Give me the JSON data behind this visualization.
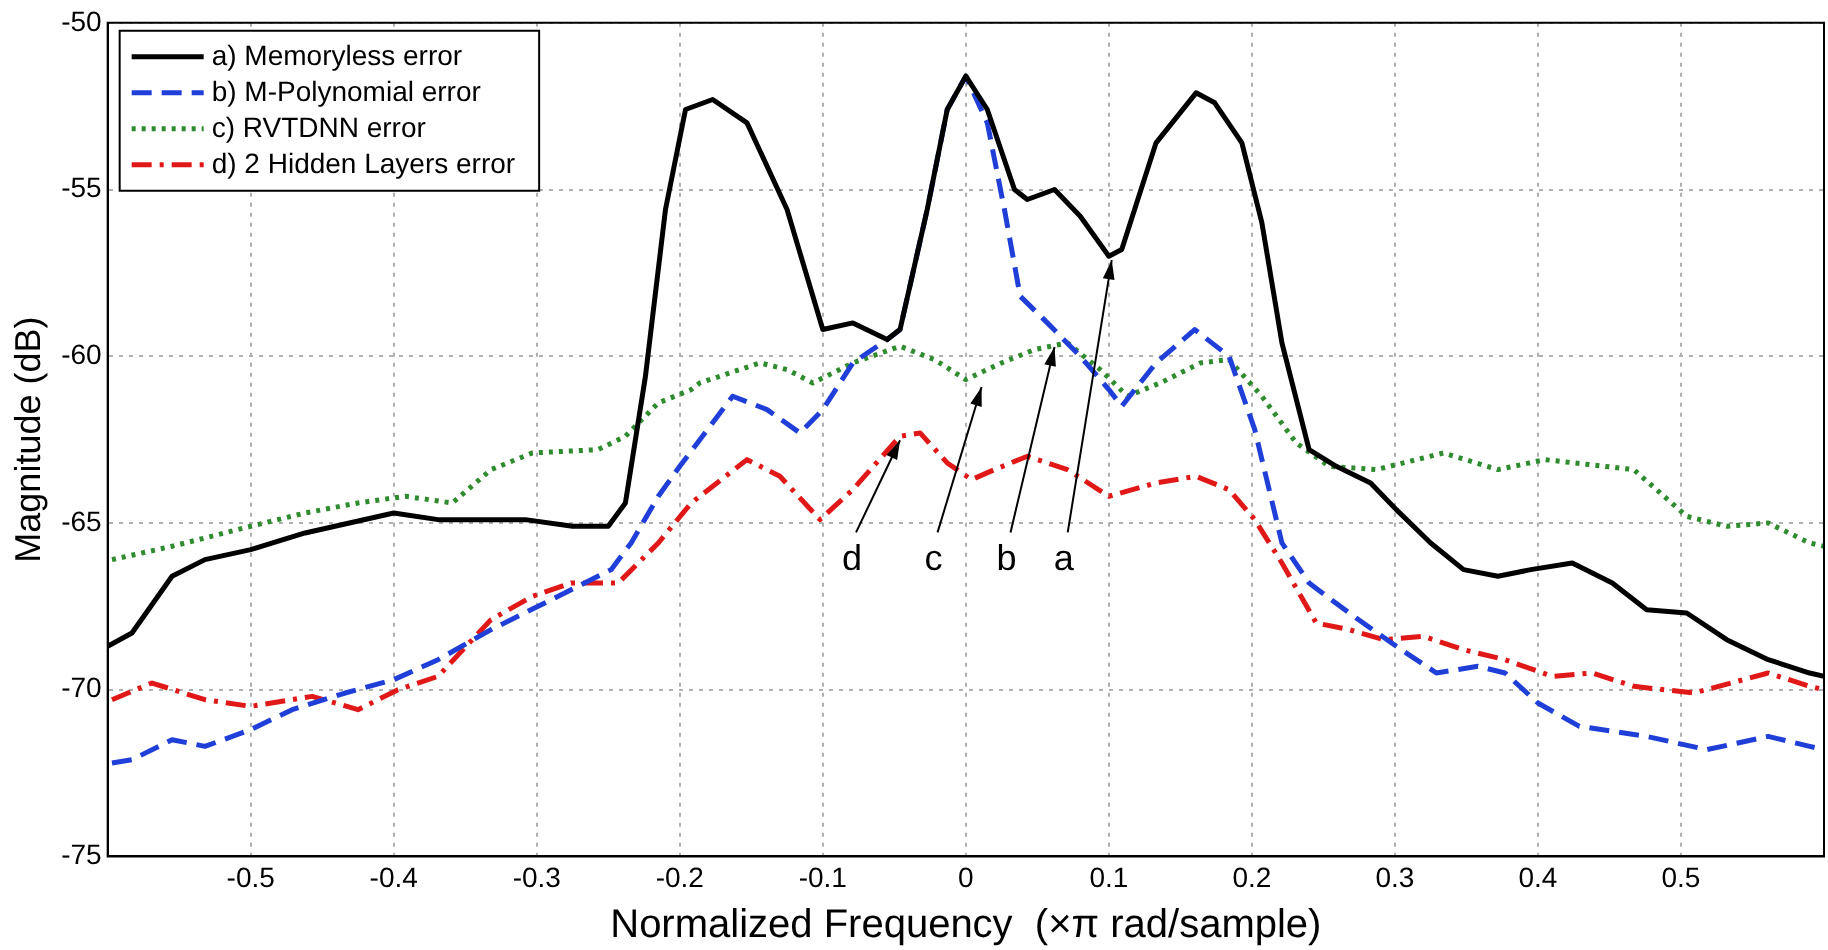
{
  "chart_data": {
    "type": "line",
    "xlabel": "Normalized Frequency  (×π rad/sample)",
    "ylabel": "Magnitude (dB)",
    "xlim": [
      -0.6,
      0.6
    ],
    "xticks": [
      -0.5,
      -0.4,
      -0.3,
      -0.2,
      -0.1,
      0,
      0.1,
      0.2,
      0.3,
      0.4,
      0.5
    ],
    "ylim": [
      -75,
      -50
    ],
    "yticks": [
      -75,
      -70,
      -65,
      -60,
      -55,
      -50
    ],
    "grid": true,
    "legend": "top left",
    "marker": "none",
    "annotations": [
      {
        "text": "d",
        "x": -0.046,
        "y": -62.4
      },
      {
        "text": "c",
        "x": 0.011,
        "y": -60.8
      },
      {
        "text": "b",
        "x": 0.062,
        "y": -59.6
      },
      {
        "text": "a",
        "x": 0.102,
        "y": -57.0
      }
    ],
    "series": [
      {
        "name": "a) Memoryless error",
        "color": "#000000",
        "line_style": "solid",
        "x": [
          -0.6,
          -0.583,
          -0.555,
          -0.532,
          -0.5,
          -0.462,
          -0.4,
          -0.369,
          -0.308,
          -0.275,
          -0.25,
          -0.238,
          -0.224,
          -0.21,
          -0.196,
          -0.177,
          -0.153,
          -0.125,
          -0.1,
          -0.079,
          -0.055,
          -0.046,
          -0.027,
          -0.013,
          0,
          0.015,
          0.034,
          0.043,
          0.062,
          0.08,
          0.1,
          0.109,
          0.133,
          0.161,
          0.174,
          0.193,
          0.207,
          0.221,
          0.24,
          0.259,
          0.283,
          0.301,
          0.325,
          0.348,
          0.372,
          0.395,
          0.424,
          0.452,
          0.476,
          0.504,
          0.532,
          0.561,
          0.59,
          0.6
        ],
        "values": [
          -68.7,
          -68.3,
          -66.6,
          -66.1,
          -65.8,
          -65.3,
          -64.7,
          -64.9,
          -64.9,
          -65.1,
          -65.1,
          -64.4,
          -60.6,
          -55.6,
          -52.6,
          -52.3,
          -53.0,
          -55.6,
          -59.2,
          -59.0,
          -59.5,
          -59.2,
          -55.6,
          -52.6,
          -51.6,
          -52.6,
          -55.0,
          -55.3,
          -55.0,
          -55.8,
          -57.0,
          -56.8,
          -53.6,
          -52.1,
          -52.4,
          -53.6,
          -56.0,
          -59.6,
          -62.8,
          -63.3,
          -63.8,
          -64.6,
          -65.6,
          -66.4,
          -66.6,
          -66.4,
          -66.2,
          -66.8,
          -67.6,
          -67.7,
          -68.5,
          -69.1,
          -69.5,
          -69.6
        ]
      },
      {
        "name": "b) M-Polynomial error",
        "color": "#1f3fd8",
        "line_style": "dashed",
        "x": [
          -0.597,
          -0.583,
          -0.555,
          -0.532,
          -0.5,
          -0.471,
          -0.434,
          -0.4,
          -0.369,
          -0.332,
          -0.285,
          -0.248,
          -0.234,
          -0.215,
          -0.2,
          -0.163,
          -0.139,
          -0.116,
          -0.1,
          -0.079,
          -0.055,
          -0.046,
          -0.027,
          -0.013,
          0,
          0.015,
          0.027,
          0.038,
          0.057,
          0.08,
          0.1,
          0.109,
          0.133,
          0.16,
          0.184,
          0.202,
          0.221,
          0.24,
          0.268,
          0.301,
          0.329,
          0.358,
          0.377,
          0.4,
          0.429,
          0.476,
          0.518,
          0.561,
          0.59,
          0.6
        ],
        "values": [
          -72.2,
          -72.1,
          -71.5,
          -71.7,
          -71.2,
          -70.6,
          -70.1,
          -69.7,
          -69.1,
          -68.2,
          -67.2,
          -66.4,
          -65.6,
          -64.2,
          -63.3,
          -61.2,
          -61.6,
          -62.3,
          -61.6,
          -60.2,
          -59.5,
          -59.2,
          -55.6,
          -52.6,
          -51.6,
          -53.0,
          -55.6,
          -58.2,
          -59.0,
          -60.0,
          -61.0,
          -61.5,
          -60.2,
          -59.2,
          -60.0,
          -62.2,
          -65.6,
          -66.8,
          -67.7,
          -68.7,
          -69.5,
          -69.3,
          -69.5,
          -70.4,
          -71.1,
          -71.4,
          -71.8,
          -71.4,
          -71.7,
          -71.8
        ]
      },
      {
        "name": "c) RVTDNN error",
        "color": "#2e8b2e",
        "line_style": "dotted",
        "x": [
          -0.597,
          -0.555,
          -0.5,
          -0.462,
          -0.425,
          -0.392,
          -0.359,
          -0.332,
          -0.303,
          -0.257,
          -0.238,
          -0.215,
          -0.192,
          -0.186,
          -0.144,
          -0.125,
          -0.107,
          -0.079,
          -0.046,
          -0.022,
          0,
          0.025,
          0.048,
          0.071,
          0.094,
          0.113,
          0.136,
          0.164,
          0.184,
          0.207,
          0.231,
          0.254,
          0.287,
          0.334,
          0.372,
          0.405,
          0.467,
          0.504,
          0.532,
          0.561,
          0.59,
          0.6
        ],
        "values": [
          -66.1,
          -65.7,
          -65.1,
          -64.7,
          -64.4,
          -64.2,
          -64.4,
          -63.4,
          -62.9,
          -62.8,
          -62.4,
          -61.4,
          -61.0,
          -60.8,
          -60.2,
          -60.4,
          -60.8,
          -60.2,
          -59.7,
          -60.1,
          -60.7,
          -60.2,
          -59.8,
          -59.6,
          -60.4,
          -61.2,
          -60.8,
          -60.2,
          -60.1,
          -61.2,
          -62.6,
          -63.3,
          -63.4,
          -62.9,
          -63.4,
          -63.1,
          -63.4,
          -64.8,
          -65.1,
          -65.0,
          -65.6,
          -65.7
        ]
      },
      {
        "name": "d) 2 Hidden Layers error",
        "color": "#e01818",
        "line_style": "dashdot",
        "x": [
          -0.597,
          -0.569,
          -0.532,
          -0.5,
          -0.457,
          -0.425,
          -0.397,
          -0.369,
          -0.332,
          -0.303,
          -0.276,
          -0.243,
          -0.215,
          -0.192,
          -0.186,
          -0.153,
          -0.13,
          -0.102,
          -0.079,
          -0.046,
          -0.032,
          -0.013,
          0.004,
          0.02,
          0.043,
          0.071,
          0.1,
          0.133,
          0.161,
          0.184,
          0.202,
          0.221,
          0.245,
          0.268,
          0.292,
          0.32,
          0.348,
          0.377,
          0.41,
          0.438,
          0.467,
          0.509,
          0.561,
          0.59,
          0.6
        ],
        "values": [
          -70.3,
          -69.8,
          -70.3,
          -70.5,
          -70.2,
          -70.6,
          -70.0,
          -69.6,
          -67.9,
          -67.2,
          -66.8,
          -66.8,
          -65.6,
          -64.4,
          -64.2,
          -63.1,
          -63.6,
          -64.9,
          -64.0,
          -62.4,
          -62.3,
          -63.2,
          -63.7,
          -63.4,
          -63.0,
          -63.4,
          -64.2,
          -63.8,
          -63.6,
          -64.0,
          -64.9,
          -66.2,
          -68.0,
          -68.2,
          -68.5,
          -68.4,
          -68.8,
          -69.1,
          -69.6,
          -69.5,
          -69.9,
          -70.1,
          -69.5,
          -69.9,
          -70.0
        ]
      }
    ]
  }
}
